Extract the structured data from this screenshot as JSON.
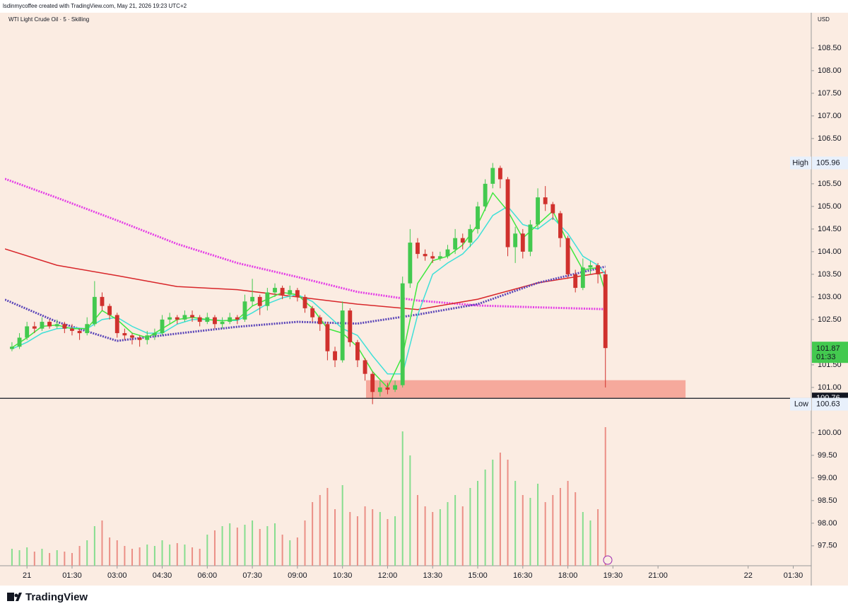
{
  "chart_data": {
    "type": "candlestick",
    "header": "lsdinmycoffee created with TradingView.com, May 21, 2026 19:23 UTC+2",
    "title": "WTI Light Crude Oil · 5 · Skilling",
    "currency": "USD",
    "brand": "TradingView",
    "xlim": [
      -44,
      1566
    ],
    "ylim": [
      97.06,
      109.28
    ],
    "grid": false,
    "up_color": "#43c94f",
    "down_color": "#d0312d",
    "volume_up_color": "#86dd8e",
    "volume_down_color": "#eb8f86",
    "xticks": [
      {
        "value": 0,
        "label": "21"
      },
      {
        "value": 90,
        "label": "01:30"
      },
      {
        "value": 180,
        "label": "03:00"
      },
      {
        "value": 270,
        "label": "04:30"
      },
      {
        "value": 360,
        "label": "06:00"
      },
      {
        "value": 450,
        "label": "07:30"
      },
      {
        "value": 540,
        "label": "09:00"
      },
      {
        "value": 630,
        "label": "10:30"
      },
      {
        "value": 720,
        "label": "12:00"
      },
      {
        "value": 810,
        "label": "13:30"
      },
      {
        "value": 900,
        "label": "15:00"
      },
      {
        "value": 990,
        "label": "16:30"
      },
      {
        "value": 1080,
        "label": "18:00"
      },
      {
        "value": 1170,
        "label": "19:30"
      },
      {
        "value": 1260,
        "label": "21:00"
      },
      {
        "value": 1440,
        "label": "22"
      },
      {
        "value": 1530,
        "label": "01:30"
      }
    ],
    "yticks": [
      {
        "value": 97.5,
        "label": "97.50"
      },
      {
        "value": 98,
        "label": "98.00"
      },
      {
        "value": 98.5,
        "label": "98.50"
      },
      {
        "value": 99,
        "label": "99.00"
      },
      {
        "value": 99.5,
        "label": "99.50"
      },
      {
        "value": 100,
        "label": "100.00"
      },
      {
        "value": 101,
        "label": "101.00"
      },
      {
        "value": 101.5,
        "label": "101.50"
      },
      {
        "value": 102.5,
        "label": "102.50"
      },
      {
        "value": 103,
        "label": "103.00"
      },
      {
        "value": 103.5,
        "label": "103.50"
      },
      {
        "value": 104,
        "label": "104.00"
      },
      {
        "value": 104.5,
        "label": "104.50"
      },
      {
        "value": 105,
        "label": "105.00"
      },
      {
        "value": 105.5,
        "label": "105.50"
      },
      {
        "value": 106.5,
        "label": "106.50"
      },
      {
        "value": 107,
        "label": "107.00"
      },
      {
        "value": 107.5,
        "label": "107.50"
      },
      {
        "value": 108,
        "label": "108.00"
      },
      {
        "value": 108.5,
        "label": "108.50"
      }
    ],
    "x": [
      -30,
      -15,
      0,
      15,
      30,
      45,
      60,
      75,
      90,
      105,
      120,
      135,
      150,
      165,
      180,
      195,
      210,
      225,
      240,
      255,
      270,
      285,
      300,
      315,
      330,
      345,
      360,
      375,
      390,
      405,
      420,
      435,
      450,
      465,
      480,
      495,
      510,
      525,
      540,
      555,
      570,
      585,
      600,
      615,
      630,
      645,
      660,
      675,
      690,
      705,
      720,
      735,
      750,
      765,
      780,
      795,
      810,
      825,
      840,
      855,
      870,
      885,
      900,
      915,
      930,
      945,
      960,
      975,
      990,
      1005,
      1020,
      1035,
      1050,
      1065,
      1080,
      1095,
      1110,
      1125,
      1140,
      1155
    ],
    "open": [
      101.85,
      101.9,
      102.1,
      102.35,
      102.3,
      102.45,
      102.35,
      102.4,
      102.3,
      102.25,
      102.2,
      102.4,
      103.0,
      102.8,
      102.6,
      102.2,
      102.15,
      102.1,
      102.05,
      102.15,
      102.2,
      102.5,
      102.55,
      102.5,
      102.6,
      102.55,
      102.45,
      102.55,
      102.4,
      102.45,
      102.55,
      102.5,
      102.9,
      103.0,
      102.8,
      103.1,
      103.2,
      103.05,
      103.15,
      103.0,
      102.75,
      102.55,
      102.4,
      101.8,
      101.6,
      102.7,
      102.0,
      101.6,
      101.3,
      100.9,
      101.0,
      100.95,
      101.05,
      103.3,
      104.2,
      103.95,
      103.9,
      103.85,
      103.9,
      104.05,
      104.3,
      104.2,
      104.5,
      105.0,
      105.5,
      105.85,
      105.6,
      104.1,
      104.4,
      104.0,
      104.6,
      105.2,
      105.05,
      104.85,
      104.3,
      103.5,
      103.2,
      103.65,
      103.7,
      103.5
    ],
    "high": [
      102.0,
      102.2,
      102.45,
      102.45,
      102.55,
      102.5,
      102.5,
      102.45,
      102.4,
      102.3,
      102.55,
      103.35,
      103.1,
      102.85,
      102.65,
      102.3,
      102.2,
      102.15,
      102.25,
      102.3,
      102.6,
      102.65,
      102.6,
      102.7,
      102.7,
      102.6,
      102.65,
      102.6,
      102.55,
      102.65,
      102.6,
      103.05,
      103.4,
      103.05,
      103.2,
      103.3,
      103.25,
      103.25,
      103.2,
      103.05,
      102.8,
      102.6,
      102.45,
      101.9,
      102.9,
      102.75,
      102.05,
      101.65,
      101.35,
      101.15,
      101.1,
      101.15,
      103.45,
      104.5,
      104.3,
      104.05,
      104.0,
      104.0,
      104.15,
      104.5,
      104.4,
      104.6,
      105.1,
      105.6,
      105.96,
      105.9,
      105.65,
      104.55,
      104.5,
      104.7,
      105.4,
      105.45,
      105.1,
      104.9,
      104.35,
      103.6,
      103.85,
      103.8,
      103.75,
      103.6
    ],
    "low": [
      101.8,
      101.85,
      102.05,
      102.2,
      102.25,
      102.3,
      102.3,
      102.2,
      102.15,
      102.05,
      102.15,
      102.35,
      102.7,
      102.5,
      102.1,
      102.05,
      101.95,
      101.9,
      101.95,
      102.05,
      102.15,
      102.4,
      102.4,
      102.45,
      102.45,
      102.35,
      102.4,
      102.3,
      102.3,
      102.4,
      102.4,
      102.45,
      102.8,
      102.6,
      102.7,
      103.0,
      102.95,
      102.95,
      102.9,
      102.65,
      102.45,
      102.25,
      101.6,
      101.45,
      101.55,
      101.9,
      101.45,
      101.15,
      100.63,
      100.8,
      100.85,
      100.9,
      101.0,
      103.2,
      103.85,
      103.8,
      103.75,
      103.8,
      103.85,
      103.95,
      104.05,
      104.1,
      104.4,
      104.9,
      105.4,
      105.4,
      103.9,
      103.75,
      103.85,
      103.9,
      104.5,
      104.9,
      104.7,
      104.1,
      103.4,
      103.1,
      103.15,
      103.5,
      103.3,
      101.0
    ],
    "close": [
      101.9,
      102.1,
      102.35,
      102.3,
      102.45,
      102.35,
      102.4,
      102.3,
      102.25,
      102.2,
      102.4,
      103.0,
      102.8,
      102.6,
      102.2,
      102.15,
      102.1,
      102.05,
      102.15,
      102.2,
      102.5,
      102.55,
      102.5,
      102.6,
      102.55,
      102.45,
      102.55,
      102.4,
      102.45,
      102.55,
      102.5,
      102.9,
      103.0,
      102.8,
      103.1,
      103.2,
      103.05,
      103.15,
      103.0,
      102.75,
      102.55,
      102.4,
      101.8,
      101.6,
      102.7,
      102.0,
      101.6,
      101.3,
      100.9,
      101.0,
      100.95,
      101.05,
      103.3,
      104.2,
      103.95,
      103.9,
      103.85,
      103.9,
      104.05,
      104.3,
      104.2,
      104.5,
      105.0,
      105.5,
      105.85,
      105.6,
      104.1,
      104.4,
      104.0,
      104.6,
      105.2,
      105.05,
      104.85,
      104.3,
      103.5,
      103.2,
      103.65,
      103.7,
      103.5,
      101.87
    ],
    "volume": [
      12,
      11,
      13,
      10,
      12,
      9,
      11,
      10,
      9,
      14,
      18,
      28,
      32,
      20,
      18,
      14,
      12,
      13,
      15,
      14,
      18,
      15,
      16,
      15,
      13,
      12,
      22,
      25,
      28,
      30,
      27,
      29,
      32,
      26,
      28,
      30,
      22,
      18,
      20,
      32,
      45,
      50,
      55,
      40,
      57,
      38,
      35,
      42,
      40,
      38,
      33,
      35,
      95,
      78,
      50,
      42,
      38,
      40,
      45,
      50,
      42,
      55,
      60,
      68,
      75,
      80,
      75,
      60,
      50,
      48,
      58,
      45,
      50,
      55,
      60,
      52,
      38,
      32,
      40,
      98
    ],
    "lines": [
      {
        "color": "#e43ee6",
        "style": "dotted",
        "x": [
          -44,
          60,
          180,
          300,
          420,
          540,
          660,
          780,
          900,
          1020,
          1155
        ],
        "values": [
          105.61,
          105.19,
          104.69,
          104.17,
          103.75,
          103.44,
          103.11,
          102.92,
          102.81,
          102.77,
          102.73
        ]
      },
      {
        "color": "#d8262a",
        "style": "solid",
        "x": [
          -44,
          60,
          180,
          300,
          420,
          540,
          660,
          780,
          900,
          1020,
          1155
        ],
        "values": [
          104.06,
          103.7,
          103.47,
          103.23,
          103.16,
          103.0,
          102.84,
          102.72,
          102.95,
          103.31,
          103.55
        ]
      },
      {
        "color": "#5a45b8",
        "style": "dotted",
        "x": [
          -44,
          60,
          180,
          300,
          420,
          540,
          660,
          780,
          900,
          1020,
          1155
        ],
        "values": [
          102.94,
          102.45,
          102.03,
          102.19,
          102.34,
          102.45,
          102.41,
          102.61,
          102.84,
          103.31,
          103.67
        ]
      },
      {
        "color": "#3fe0d8",
        "style": "solid",
        "x": [
          -30,
          0,
          30,
          60,
          90,
          120,
          150,
          180,
          210,
          240,
          270,
          300,
          330,
          360,
          390,
          420,
          450,
          480,
          510,
          540,
          570,
          600,
          630,
          660,
          690,
          720,
          750,
          780,
          810,
          840,
          870,
          900,
          930,
          960,
          990,
          1020,
          1050,
          1080,
          1110,
          1140,
          1155
        ],
        "values": [
          101.85,
          102.0,
          102.2,
          102.3,
          102.32,
          102.3,
          102.5,
          102.55,
          102.35,
          102.2,
          102.2,
          102.4,
          102.5,
          102.5,
          102.48,
          102.48,
          102.65,
          102.85,
          102.98,
          103.05,
          102.9,
          102.6,
          102.3,
          102.15,
          101.7,
          101.3,
          101.3,
          102.6,
          103.5,
          103.75,
          103.95,
          104.3,
          104.8,
          105.0,
          104.6,
          104.5,
          104.75,
          104.4,
          103.9,
          103.7,
          103.5
        ]
      },
      {
        "color": "#3fe83f",
        "style": "solid",
        "x": [
          -30,
          0,
          30,
          60,
          90,
          120,
          150,
          180,
          210,
          240,
          270,
          300,
          330,
          360,
          390,
          420,
          450,
          480,
          510,
          540,
          570,
          600,
          630,
          660,
          690,
          720,
          750,
          780,
          810,
          840,
          870,
          900,
          930,
          960,
          990,
          1020,
          1050,
          1080,
          1110,
          1140,
          1155
        ],
        "values": [
          101.88,
          102.1,
          102.35,
          102.38,
          102.3,
          102.3,
          102.7,
          102.5,
          102.2,
          102.1,
          102.3,
          102.5,
          102.55,
          102.5,
          102.47,
          102.5,
          102.8,
          102.95,
          103.1,
          103.05,
          102.75,
          102.3,
          102.2,
          101.9,
          101.35,
          101.0,
          101.7,
          103.3,
          103.8,
          103.9,
          104.15,
          104.6,
          105.3,
          104.9,
          104.3,
          104.6,
          104.9,
          104.2,
          103.6,
          103.65,
          103.1
        ]
      }
    ],
    "zone": {
      "x": [
        677,
        1315
      ],
      "y": [
        100.77,
        101.16
      ],
      "color": "#f6a99c"
    },
    "hline": 100.76,
    "markers": [
      {
        "label": "High",
        "value": 105.96
      },
      {
        "label": "Low",
        "value": 100.63
      }
    ],
    "last": {
      "value": 101.87,
      "countdown": "01:33"
    }
  }
}
